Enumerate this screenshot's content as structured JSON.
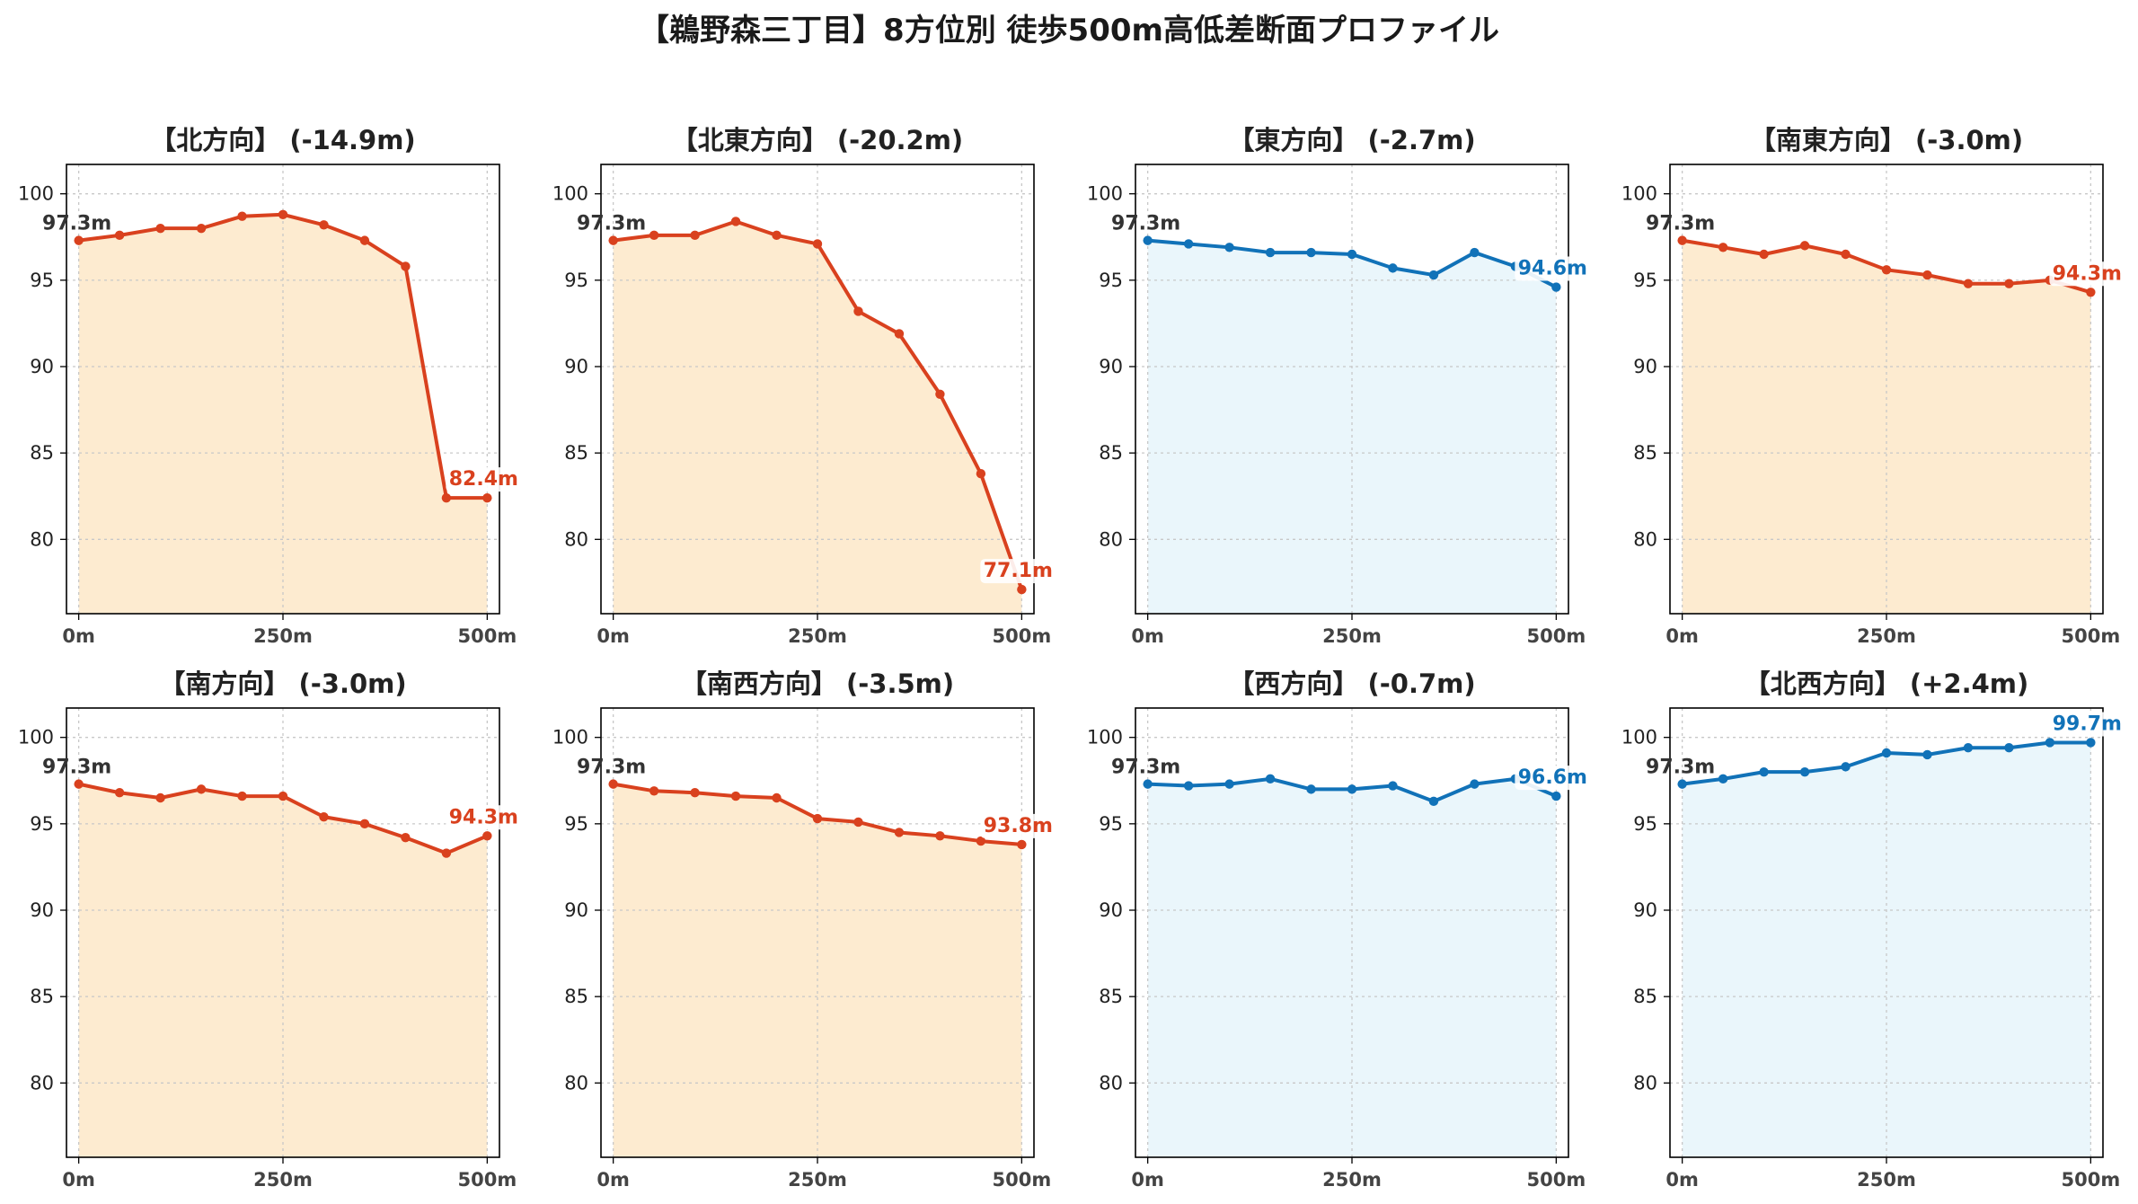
{
  "title": "【鵜野森三丁目】8方位別 徒歩500m高低差断面プロファイル",
  "colors": {
    "down_line": "#d9411e",
    "down_fill": "#fdebd0",
    "up_line": "#1172b8",
    "up_fill": "#eaf6fb",
    "grid": "#c8c8c8",
    "axis": "#000000",
    "start_label": "#333333"
  },
  "chart_data": [
    {
      "type": "area",
      "title": "【北方向】 (-14.9m)",
      "trend": "down",
      "x": [
        0,
        50,
        100,
        150,
        200,
        250,
        300,
        350,
        400,
        450,
        500
      ],
      "y": [
        97.3,
        97.6,
        98.0,
        98.0,
        98.7,
        98.8,
        98.2,
        97.3,
        95.8,
        82.4,
        82.4
      ],
      "start_label": "97.3m",
      "end_label": "82.4m",
      "xticks": [
        "0m",
        "250m",
        "500m"
      ],
      "yticks": [
        "80",
        "85",
        "90",
        "95",
        "100"
      ],
      "xlim": [
        -15,
        515
      ],
      "ylim": [
        75.7,
        101.7
      ],
      "grid": true
    },
    {
      "type": "area",
      "title": "【北東方向】 (-20.2m)",
      "trend": "down",
      "x": [
        0,
        50,
        100,
        150,
        200,
        250,
        300,
        350,
        400,
        450,
        500
      ],
      "y": [
        97.3,
        97.6,
        97.6,
        98.4,
        97.6,
        97.1,
        93.2,
        91.9,
        88.4,
        83.8,
        77.1
      ],
      "start_label": "97.3m",
      "end_label": "77.1m",
      "xticks": [
        "0m",
        "250m",
        "500m"
      ],
      "yticks": [
        "80",
        "85",
        "90",
        "95",
        "100"
      ],
      "xlim": [
        -15,
        515
      ],
      "ylim": [
        75.7,
        101.7
      ],
      "grid": true
    },
    {
      "type": "area",
      "title": "【東方向】 (-2.7m)",
      "trend": "up",
      "x": [
        0,
        50,
        100,
        150,
        200,
        250,
        300,
        350,
        400,
        450,
        500
      ],
      "y": [
        97.3,
        97.1,
        96.9,
        96.6,
        96.6,
        96.5,
        95.7,
        95.3,
        96.6,
        95.8,
        94.6
      ],
      "start_label": "97.3m",
      "end_label": "94.6m",
      "xticks": [
        "0m",
        "250m",
        "500m"
      ],
      "yticks": [
        "80",
        "85",
        "90",
        "95",
        "100"
      ],
      "xlim": [
        -15,
        515
      ],
      "ylim": [
        75.7,
        101.7
      ],
      "grid": true
    },
    {
      "type": "area",
      "title": "【南東方向】 (-3.0m)",
      "trend": "down",
      "x": [
        0,
        50,
        100,
        150,
        200,
        250,
        300,
        350,
        400,
        450,
        500
      ],
      "y": [
        97.3,
        96.9,
        96.5,
        97.0,
        96.5,
        95.6,
        95.3,
        94.8,
        94.8,
        95.0,
        94.3
      ],
      "start_label": "97.3m",
      "end_label": "94.3m",
      "xticks": [
        "0m",
        "250m",
        "500m"
      ],
      "yticks": [
        "80",
        "85",
        "90",
        "95",
        "100"
      ],
      "xlim": [
        -15,
        515
      ],
      "ylim": [
        75.7,
        101.7
      ],
      "grid": true
    },
    {
      "type": "area",
      "title": "【南方向】 (-3.0m)",
      "trend": "down",
      "x": [
        0,
        50,
        100,
        150,
        200,
        250,
        300,
        350,
        400,
        450,
        500
      ],
      "y": [
        97.3,
        96.8,
        96.5,
        97.0,
        96.6,
        96.6,
        95.4,
        95.0,
        94.2,
        93.3,
        94.3
      ],
      "start_label": "97.3m",
      "end_label": "94.3m",
      "xticks": [
        "0m",
        "250m",
        "500m"
      ],
      "yticks": [
        "80",
        "85",
        "90",
        "95",
        "100"
      ],
      "xlim": [
        -15,
        515
      ],
      "ylim": [
        75.7,
        101.7
      ],
      "grid": true
    },
    {
      "type": "area",
      "title": "【南西方向】 (-3.5m)",
      "trend": "down",
      "x": [
        0,
        50,
        100,
        150,
        200,
        250,
        300,
        350,
        400,
        450,
        500
      ],
      "y": [
        97.3,
        96.9,
        96.8,
        96.6,
        96.5,
        95.3,
        95.1,
        94.5,
        94.3,
        94.0,
        93.8
      ],
      "start_label": "97.3m",
      "end_label": "93.8m",
      "xticks": [
        "0m",
        "250m",
        "500m"
      ],
      "yticks": [
        "80",
        "85",
        "90",
        "95",
        "100"
      ],
      "xlim": [
        -15,
        515
      ],
      "ylim": [
        75.7,
        101.7
      ],
      "grid": true
    },
    {
      "type": "area",
      "title": "【西方向】 (-0.7m)",
      "trend": "up",
      "x": [
        0,
        50,
        100,
        150,
        200,
        250,
        300,
        350,
        400,
        450,
        500
      ],
      "y": [
        97.3,
        97.2,
        97.3,
        97.6,
        97.0,
        97.0,
        97.2,
        96.3,
        97.3,
        97.6,
        96.6
      ],
      "start_label": "97.3m",
      "end_label": "96.6m",
      "xticks": [
        "0m",
        "250m",
        "500m"
      ],
      "yticks": [
        "80",
        "85",
        "90",
        "95",
        "100"
      ],
      "xlim": [
        -15,
        515
      ],
      "ylim": [
        75.7,
        101.7
      ],
      "grid": true
    },
    {
      "type": "area",
      "title": "【北西方向】 (+2.4m)",
      "trend": "up",
      "x": [
        0,
        50,
        100,
        150,
        200,
        250,
        300,
        350,
        400,
        450,
        500
      ],
      "y": [
        97.3,
        97.6,
        98.0,
        98.0,
        98.3,
        99.1,
        99.0,
        99.4,
        99.4,
        99.7,
        99.7
      ],
      "start_label": "97.3m",
      "end_label": "99.7m",
      "xticks": [
        "0m",
        "250m",
        "500m"
      ],
      "yticks": [
        "80",
        "85",
        "90",
        "95",
        "100"
      ],
      "xlim": [
        -15,
        515
      ],
      "ylim": [
        75.7,
        101.7
      ],
      "grid": true
    }
  ]
}
